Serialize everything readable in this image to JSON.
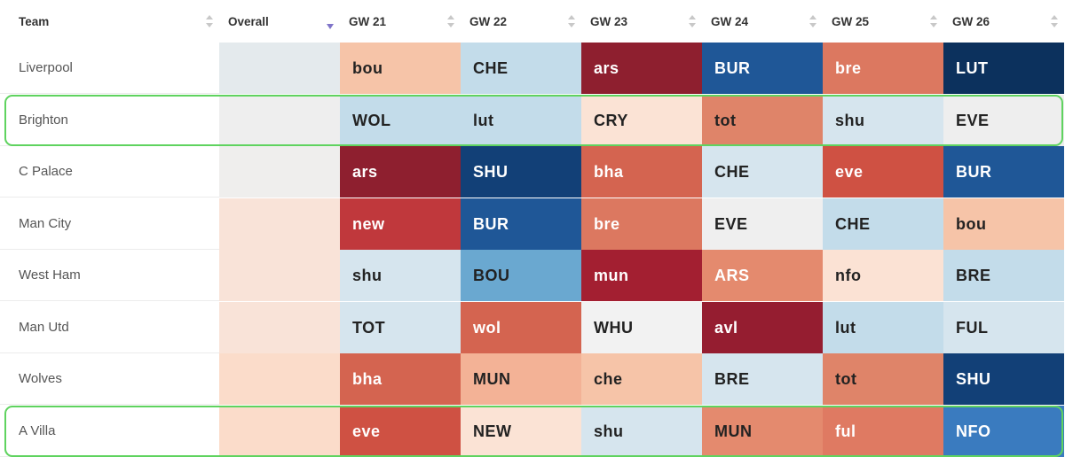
{
  "headers": {
    "team": "Team",
    "overall": "Overall",
    "gameweeks": [
      "GW 21",
      "GW 22",
      "GW 23",
      "GW 24",
      "GW 25",
      "GW 26"
    ]
  },
  "teams": [
    {
      "name": "Liverpool",
      "overall_bg": "#e4eaed",
      "fixtures": [
        {
          "opp": "bou",
          "bg": "#f6c4a8",
          "fg": "#222222"
        },
        {
          "opp": "CHE",
          "bg": "#c3dcea",
          "fg": "#222222"
        },
        {
          "opp": "ars",
          "bg": "#8e1f2f",
          "fg": "#ffffff"
        },
        {
          "opp": "BUR",
          "bg": "#1f5797",
          "fg": "#ffffff"
        },
        {
          "opp": "bre",
          "bg": "#dc7860",
          "fg": "#ffffff"
        },
        {
          "opp": "LUT",
          "bg": "#0c315d",
          "fg": "#ffffff"
        }
      ]
    },
    {
      "name": "Brighton",
      "overall_bg": "#eeeeee",
      "fixtures": [
        {
          "opp": "WOL",
          "bg": "#c3dcea",
          "fg": "#222222"
        },
        {
          "opp": "lut",
          "bg": "#c3dcea",
          "fg": "#222222"
        },
        {
          "opp": "CRY",
          "bg": "#fbe3d5",
          "fg": "#222222"
        },
        {
          "opp": "tot",
          "bg": "#df8469",
          "fg": "#222222"
        },
        {
          "opp": "shu",
          "bg": "#d6e5ee",
          "fg": "#222222"
        },
        {
          "opp": "EVE",
          "bg": "#eeeeee",
          "fg": "#222222"
        }
      ]
    },
    {
      "name": "C Palace",
      "overall_bg": "#efeeed",
      "fixtures": [
        {
          "opp": "ars",
          "bg": "#8e1f2f",
          "fg": "#ffffff"
        },
        {
          "opp": "SHU",
          "bg": "#124077",
          "fg": "#ffffff"
        },
        {
          "opp": "bha",
          "bg": "#d46450",
          "fg": "#ffffff"
        },
        {
          "opp": "CHE",
          "bg": "#d6e5ee",
          "fg": "#222222"
        },
        {
          "opp": "eve",
          "bg": "#cf5143",
          "fg": "#ffffff"
        },
        {
          "opp": "BUR",
          "bg": "#1f5797",
          "fg": "#ffffff"
        }
      ]
    },
    {
      "name": "Man City",
      "overall_bg": "#f9e3d8",
      "fixtures": [
        {
          "opp": "new",
          "bg": "#c0383c",
          "fg": "#ffffff"
        },
        {
          "opp": "BUR",
          "bg": "#1f5797",
          "fg": "#ffffff"
        },
        {
          "opp": "bre",
          "bg": "#dc7860",
          "fg": "#ffffff"
        },
        {
          "opp": "EVE",
          "bg": "#efefef",
          "fg": "#222222"
        },
        {
          "opp": "CHE",
          "bg": "#c3dcea",
          "fg": "#222222"
        },
        {
          "opp": "bou",
          "bg": "#f6c4a8",
          "fg": "#222222"
        }
      ]
    },
    {
      "name": "West Ham",
      "overall_bg": "#f9e3d8",
      "fixtures": [
        {
          "opp": "shu",
          "bg": "#d6e5ee",
          "fg": "#222222"
        },
        {
          "opp": "BOU",
          "bg": "#6aa8d0",
          "fg": "#222222"
        },
        {
          "opp": "mun",
          "bg": "#a31f31",
          "fg": "#ffffff"
        },
        {
          "opp": "ARS",
          "bg": "#e48a6e",
          "fg": "#ffffff"
        },
        {
          "opp": "nfo",
          "bg": "#fbe2d4",
          "fg": "#222222"
        },
        {
          "opp": "BRE",
          "bg": "#c3dcea",
          "fg": "#222222"
        }
      ]
    },
    {
      "name": "Man Utd",
      "overall_bg": "#f9e3d8",
      "fixtures": [
        {
          "opp": "TOT",
          "bg": "#d6e5ee",
          "fg": "#222222"
        },
        {
          "opp": "wol",
          "bg": "#d46450",
          "fg": "#ffffff"
        },
        {
          "opp": "WHU",
          "bg": "#f2f2f2",
          "fg": "#222222"
        },
        {
          "opp": "avl",
          "bg": "#951d30",
          "fg": "#ffffff"
        },
        {
          "opp": "lut",
          "bg": "#c3dcea",
          "fg": "#222222"
        },
        {
          "opp": "FUL",
          "bg": "#d6e5ee",
          "fg": "#222222"
        }
      ]
    },
    {
      "name": "Wolves",
      "overall_bg": "#fbdcca",
      "fixtures": [
        {
          "opp": "bha",
          "bg": "#d46450",
          "fg": "#ffffff"
        },
        {
          "opp": "MUN",
          "bg": "#f3b296",
          "fg": "#222222"
        },
        {
          "opp": "che",
          "bg": "#f6c4a8",
          "fg": "#222222"
        },
        {
          "opp": "BRE",
          "bg": "#d6e5ee",
          "fg": "#222222"
        },
        {
          "opp": "tot",
          "bg": "#df8469",
          "fg": "#222222"
        },
        {
          "opp": "SHU",
          "bg": "#124077",
          "fg": "#ffffff"
        }
      ]
    },
    {
      "name": "A Villa",
      "overall_bg": "#fbdcca",
      "fixtures": [
        {
          "opp": "eve",
          "bg": "#cf5143",
          "fg": "#ffffff"
        },
        {
          "opp": "NEW",
          "bg": "#fbe3d5",
          "fg": "#222222"
        },
        {
          "opp": "shu",
          "bg": "#d6e5ee",
          "fg": "#222222"
        },
        {
          "opp": "MUN",
          "bg": "#e48a6e",
          "fg": "#222222"
        },
        {
          "opp": "ful",
          "bg": "#df7a62",
          "fg": "#ffffff"
        },
        {
          "opp": "NFO",
          "bg": "#3a7bbf",
          "fg": "#ffffff"
        }
      ]
    }
  ],
  "highlighted_teams": [
    "Brighton",
    "A Villa"
  ],
  "highlight_color": "#5fd35f",
  "sort_active_color": "#7f74c9"
}
